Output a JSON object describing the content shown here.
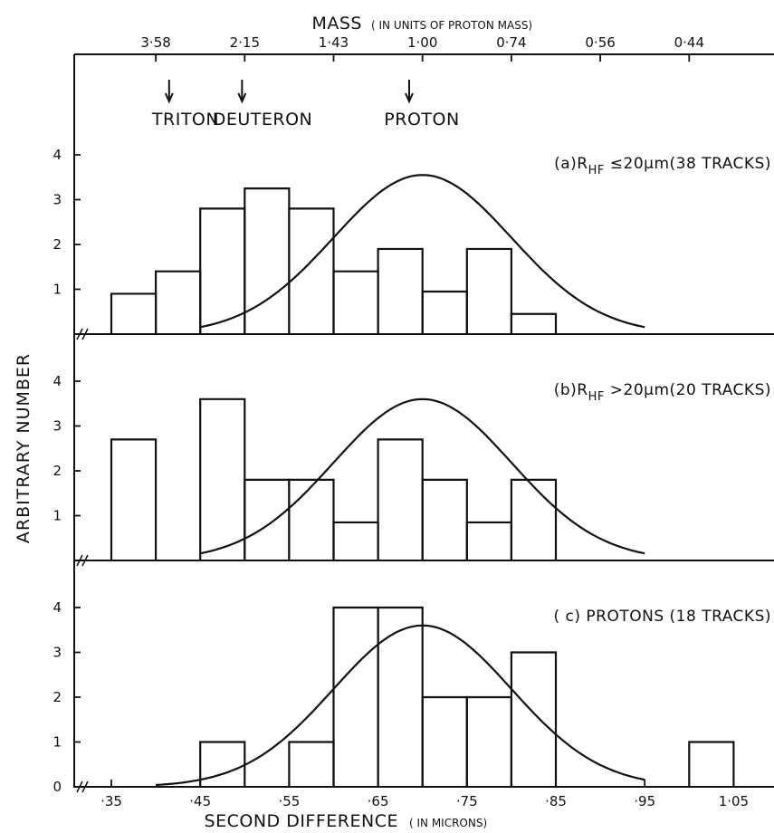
{
  "chart_data": {
    "type": "bar",
    "top_axis": {
      "label": "MASS",
      "label_note": "( IN UNITS  OF PROTON MASS)",
      "ticks": [
        {
          "label": "3·58",
          "x": 0.4
        },
        {
          "label": "2·15",
          "x": 0.5
        },
        {
          "label": "1·43",
          "x": 0.6
        },
        {
          "label": "1·00",
          "x": 0.7
        },
        {
          "label": "0·74",
          "x": 0.8
        },
        {
          "label": "0·56",
          "x": 0.9
        },
        {
          "label": "0·44",
          "x": 1.0
        }
      ],
      "markers": [
        {
          "label": "TRITON",
          "x": 0.415
        },
        {
          "label": "DEUTERON",
          "x": 0.497
        },
        {
          "label": "PROTON",
          "x": 0.685
        }
      ]
    },
    "xlabel": "SECOND DIFFERENCE",
    "xlabel_note": "( IN MICRONS)",
    "ylabel": "ARBITRARY NUMBER",
    "xlim": [
      0.33,
      1.07
    ],
    "x_ticks": [
      {
        "v": 0.35,
        "label": "·35"
      },
      {
        "v": 0.45,
        "label": "·45"
      },
      {
        "v": 0.55,
        "label": "·55"
      },
      {
        "v": 0.65,
        "label": "·65"
      },
      {
        "v": 0.75,
        "label": "·75"
      },
      {
        "v": 0.85,
        "label": "·85"
      },
      {
        "v": 0.95,
        "label": "·95"
      },
      {
        "v": 1.05,
        "label": "1·05"
      }
    ],
    "y_ticks": [
      {
        "v": 1,
        "label": "1"
      },
      {
        "v": 2,
        "label": "2"
      },
      {
        "v": 3,
        "label": "3"
      },
      {
        "v": 4,
        "label": "4"
      }
    ],
    "zero_label": "0",
    "panels": [
      {
        "id": "a",
        "label_parts": {
          "pre": "(a)R",
          "sub": "HF",
          "post": " ≤20μm(38 TRACKS)"
        },
        "ylim": [
          0,
          5
        ],
        "bin_width": 0.05,
        "bins": [
          {
            "x0": 0.35,
            "y": 0.9
          },
          {
            "x0": 0.4,
            "y": 1.4
          },
          {
            "x0": 0.45,
            "y": 2.8
          },
          {
            "x0": 0.5,
            "y": 3.25
          },
          {
            "x0": 0.55,
            "y": 2.8
          },
          {
            "x0": 0.6,
            "y": 1.4
          },
          {
            "x0": 0.65,
            "y": 1.9
          },
          {
            "x0": 0.7,
            "y": 0.95
          },
          {
            "x0": 0.75,
            "y": 1.9
          },
          {
            "x0": 0.8,
            "y": 0.45
          }
        ],
        "fit": {
          "mu": 0.7,
          "sigma": 0.1,
          "peak": 3.55,
          "from": 0.45,
          "to": 0.95
        }
      },
      {
        "id": "b",
        "label_parts": {
          "pre": "(b)R",
          "sub": "HF",
          "post": " >20μm(20 TRACKS)"
        },
        "ylim": [
          0,
          5
        ],
        "bin_width": 0.05,
        "bins": [
          {
            "x0": 0.35,
            "y": 2.7
          },
          {
            "x0": 0.4,
            "y": 0
          },
          {
            "x0": 0.45,
            "y": 3.6
          },
          {
            "x0": 0.5,
            "y": 1.8
          },
          {
            "x0": 0.55,
            "y": 1.8
          },
          {
            "x0": 0.6,
            "y": 0.85
          },
          {
            "x0": 0.65,
            "y": 2.7
          },
          {
            "x0": 0.7,
            "y": 1.8
          },
          {
            "x0": 0.75,
            "y": 0.85
          },
          {
            "x0": 0.8,
            "y": 1.8
          }
        ],
        "fit": {
          "mu": 0.7,
          "sigma": 0.1,
          "peak": 3.6,
          "from": 0.45,
          "to": 0.95
        }
      },
      {
        "id": "c",
        "label_parts": {
          "pre": "( c)  PROTONS (18 TRACKS)",
          "sub": "",
          "post": ""
        },
        "ylim": [
          0,
          5
        ],
        "bin_width": 0.05,
        "bins": [
          {
            "x0": 0.45,
            "y": 1
          },
          {
            "x0": 0.5,
            "y": 0
          },
          {
            "x0": 0.55,
            "y": 1
          },
          {
            "x0": 0.6,
            "y": 4
          },
          {
            "x0": 0.65,
            "y": 4
          },
          {
            "x0": 0.7,
            "y": 2
          },
          {
            "x0": 0.75,
            "y": 2
          },
          {
            "x0": 0.8,
            "y": 3
          },
          {
            "x0": 1.0,
            "y": 1
          }
        ],
        "fit": {
          "mu": 0.7,
          "sigma": 0.1,
          "peak": 3.6,
          "from": 0.4,
          "to": 0.95
        }
      }
    ]
  }
}
